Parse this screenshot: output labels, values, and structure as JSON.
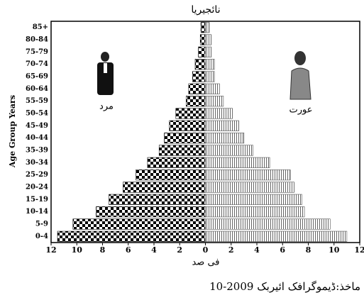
{
  "chart_data": {
    "type": "pyramid",
    "title": "نائجیریا",
    "x_label": "فی صد",
    "y_label": "Age Group Years",
    "source": "ماخذ:ڈیموگرافک ائیربک 2009-10",
    "categories": [
      "0-4",
      "5-9",
      "10-14",
      "15-19",
      "20-24",
      "25-29",
      "30-34",
      "35-39",
      "40-44",
      "45-49",
      "50-54",
      "55-59",
      "60-64",
      "65-69",
      "70-74",
      "75-79",
      "80-84",
      "85+"
    ],
    "series": [
      {
        "name": "مرد",
        "color": "#000000",
        "side": "left",
        "values": [
          11.5,
          10.3,
          8.5,
          7.5,
          6.4,
          5.4,
          4.5,
          3.6,
          3.2,
          2.8,
          2.3,
          1.5,
          1.3,
          1.0,
          0.8,
          0.55,
          0.4,
          0.35
        ]
      },
      {
        "name": "عورت",
        "color": "#555555",
        "side": "right",
        "values": [
          11.0,
          9.7,
          7.7,
          7.5,
          6.9,
          6.6,
          5.0,
          3.7,
          3.0,
          2.6,
          2.1,
          1.4,
          1.1,
          0.7,
          0.7,
          0.45,
          0.45,
          0.3
        ]
      }
    ],
    "xlim": [
      -12,
      12
    ],
    "xticks": [
      {
        "value": -12,
        "label": "12"
      },
      {
        "value": -10,
        "label": "10"
      },
      {
        "value": -8,
        "label": "8"
      },
      {
        "value": -6,
        "label": "6"
      },
      {
        "value": -4,
        "label": "4"
      },
      {
        "value": -2,
        "label": "2"
      },
      0,
      2,
      4,
      6,
      8,
      10,
      12
    ]
  }
}
